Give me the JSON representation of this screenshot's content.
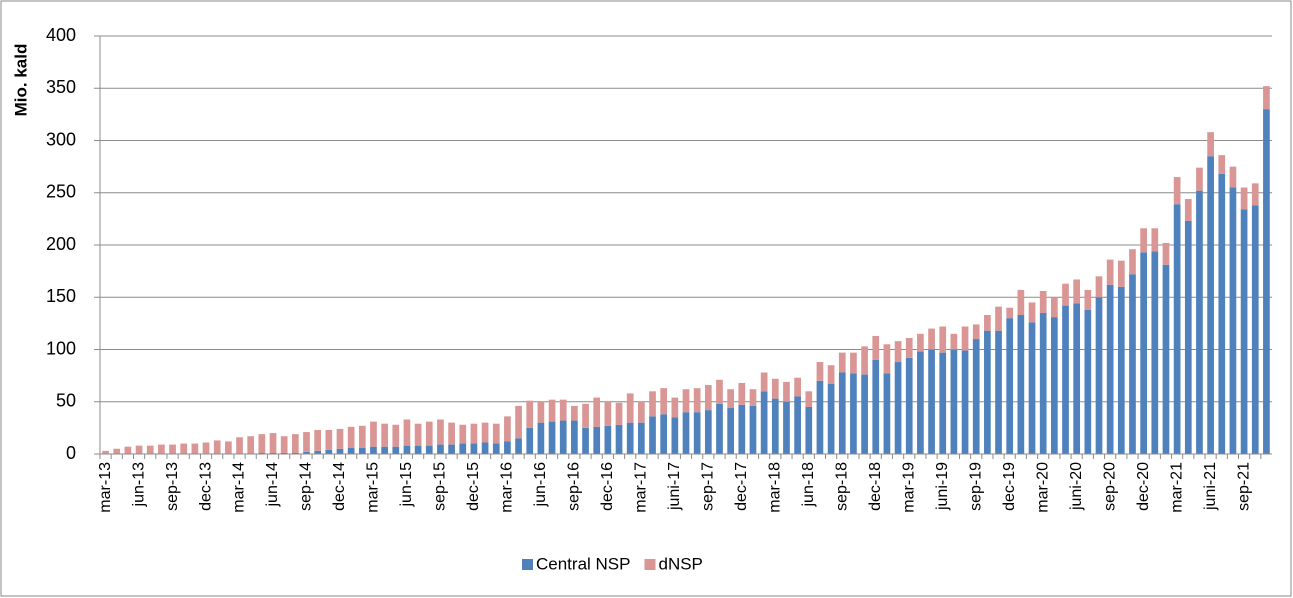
{
  "chart_data": {
    "type": "stacked-bar",
    "y_label": "Mio. kald",
    "categories": [
      "mar-13",
      null,
      null,
      "jun-13",
      null,
      null,
      "sep-13",
      null,
      null,
      "dec-13",
      null,
      null,
      "mar-14",
      null,
      null,
      "jun-14",
      null,
      null,
      "sep-14",
      null,
      null,
      "dec-14",
      null,
      null,
      "mar-15",
      null,
      null,
      "jun-15",
      null,
      null,
      "sep-15",
      null,
      null,
      "dec-15",
      null,
      null,
      "mar-16",
      null,
      null,
      "jun-16",
      null,
      null,
      "sep-16",
      null,
      null,
      "dec-16",
      null,
      null,
      "mar-17",
      null,
      null,
      "juni-17",
      null,
      null,
      "sep-17",
      null,
      null,
      "dec-17",
      null,
      null,
      "mar-18",
      null,
      null,
      "jun-18",
      null,
      null,
      "sep-18",
      null,
      null,
      "dec-18",
      null,
      null,
      "mar-19",
      null,
      null,
      "juni-19",
      null,
      null,
      "sep-19",
      null,
      null,
      "dec-19",
      null,
      null,
      "mar-20",
      null,
      null,
      "juni-20",
      null,
      null,
      "sep-20",
      null,
      null,
      "dec-20",
      null,
      null,
      "mar-21",
      null,
      null,
      "juni-21",
      null,
      null,
      "sep-21",
      null,
      null
    ],
    "series": [
      {
        "name": "Central NSP",
        "color": "#4f81bd",
        "values": [
          0,
          0,
          0,
          0,
          0,
          0,
          0,
          0,
          0,
          0,
          0,
          0,
          0,
          0,
          1,
          1,
          1,
          1,
          2,
          3,
          4,
          5,
          6,
          6,
          7,
          7,
          7,
          8,
          8,
          8,
          9,
          9,
          10,
          10,
          11,
          10,
          12,
          15,
          25,
          30,
          31,
          32,
          32,
          25,
          26,
          27,
          28,
          30,
          30,
          36,
          38,
          35,
          40,
          40,
          42,
          48,
          44,
          47,
          46,
          60,
          53,
          50,
          55,
          45,
          70,
          67,
          78,
          77,
          76,
          90,
          77,
          88,
          92,
          98,
          100,
          97,
          100,
          99,
          110,
          118,
          118,
          130,
          133,
          126,
          135,
          131,
          142,
          144,
          138,
          150,
          162,
          160,
          172,
          193,
          194,
          181,
          239,
          223,
          252,
          285,
          268,
          255,
          234,
          238,
          330
        ]
      },
      {
        "name": "dNSP",
        "color": "#d99694",
        "values": [
          3,
          5,
          7,
          8,
          8,
          9,
          9,
          10,
          10,
          11,
          13,
          12,
          16,
          17,
          18,
          19,
          16,
          18,
          19,
          20,
          19,
          19,
          20,
          21,
          24,
          22,
          21,
          25,
          21,
          23,
          24,
          21,
          18,
          19,
          19,
          19,
          24,
          31,
          26,
          20,
          21,
          20,
          14,
          23,
          28,
          23,
          21,
          28,
          20,
          24,
          25,
          19,
          22,
          23,
          24,
          23,
          18,
          21,
          16,
          18,
          19,
          19,
          18,
          15,
          18,
          18,
          19,
          20,
          27,
          23,
          28,
          20,
          19,
          17,
          20,
          25,
          15,
          23,
          14,
          15,
          23,
          10,
          24,
          19,
          21,
          19,
          21,
          23,
          19,
          20,
          24,
          25,
          24,
          23,
          22,
          21,
          26,
          21,
          22,
          23,
          18,
          20,
          21,
          21,
          22
        ]
      }
    ],
    "ylim": [
      0,
      400
    ],
    "yticks": [
      0,
      50,
      100,
      150,
      200,
      250,
      300,
      350,
      400
    ],
    "grid": true,
    "legend": "bottom"
  }
}
